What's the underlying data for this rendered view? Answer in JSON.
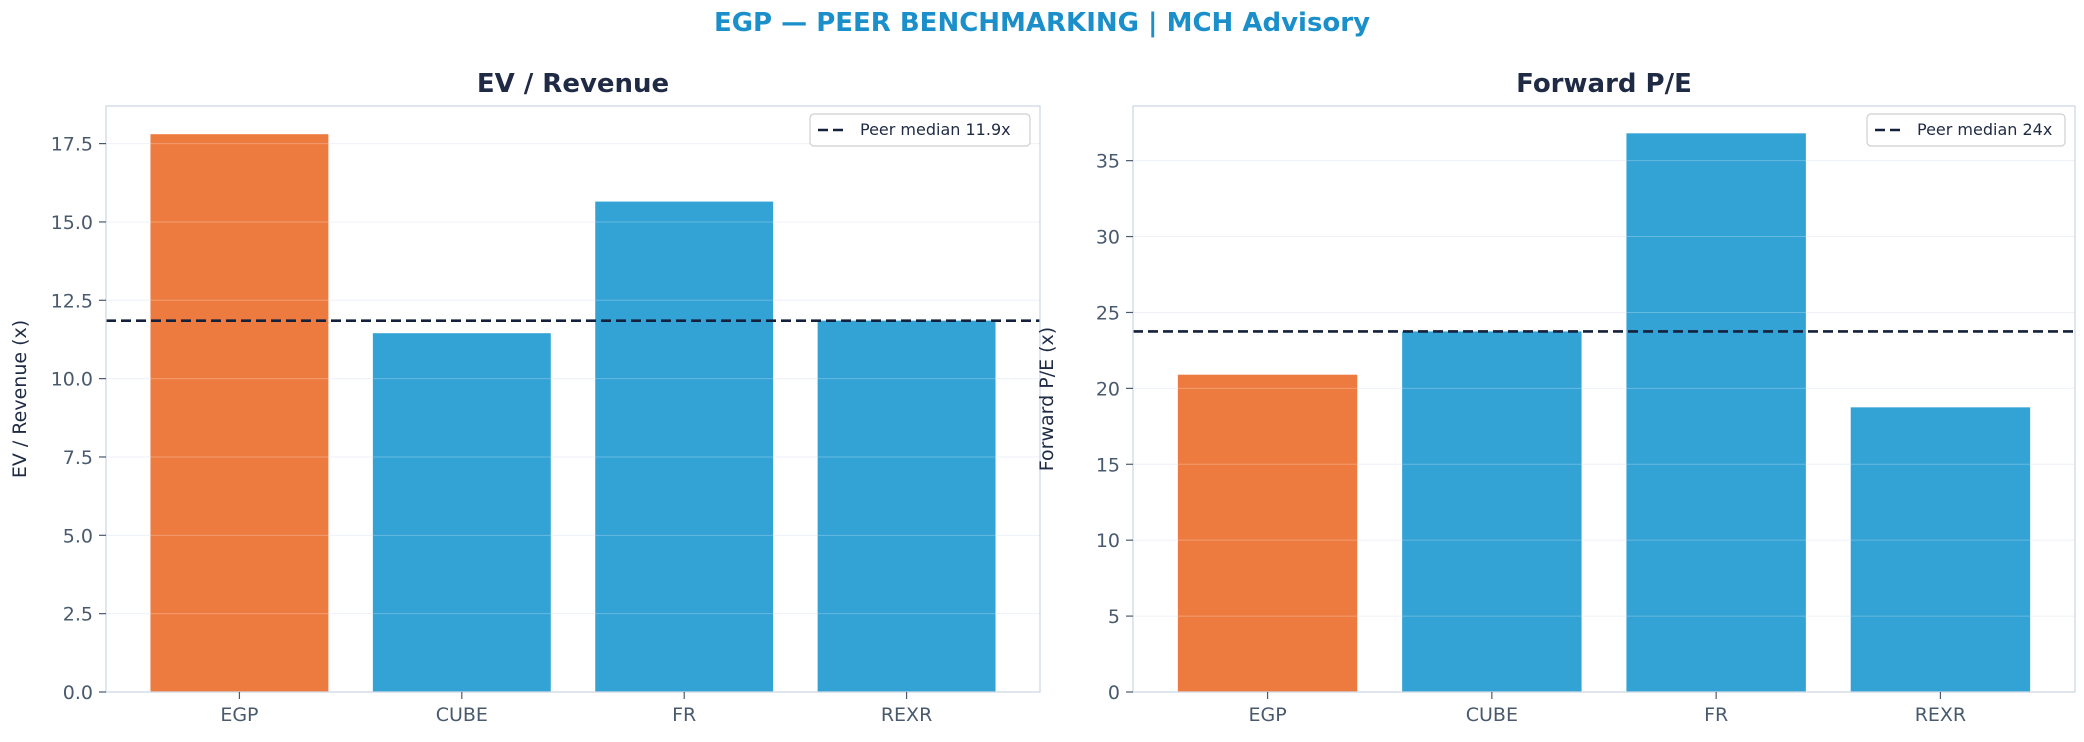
{
  "suptitle": "EGP — PEER BENCHMARKING | MCH Advisory",
  "colors": {
    "highlight": "#ED7B3F",
    "peer": "#33A2D4",
    "median_line": "#14213D",
    "title": "#1a8fca",
    "axis_text": "#4a5a6e",
    "axis_title": "#1f2a44",
    "panel_border": "#cfd8e3",
    "grid": "#e8eef4"
  },
  "chart_data": [
    {
      "type": "bar",
      "title": "EV / Revenue",
      "xlabel": "",
      "ylabel": "EV / Revenue (x)",
      "categories": [
        "EGP",
        "CUBE",
        "FR",
        "REXR"
      ],
      "values": [
        17.8,
        11.45,
        15.65,
        11.85
      ],
      "highlight_index": 0,
      "ylim": [
        0,
        18.7
      ],
      "yticks": [
        0,
        2.5,
        5,
        7.5,
        10,
        12.5,
        15,
        17.5
      ],
      "ytick_labels": [
        "0.0",
        "2.5",
        "5.0",
        "7.5",
        "10.0",
        "12.5",
        "15.0",
        "17.5"
      ],
      "median": 11.85,
      "legend_label": "Peer median 11.9x",
      "legend_position": "top-right",
      "grid": true
    },
    {
      "type": "bar",
      "title": "Forward P/E",
      "xlabel": "",
      "ylabel": "Forward P/E (x)",
      "categories": [
        "EGP",
        "CUBE",
        "FR",
        "REXR"
      ],
      "values": [
        20.9,
        23.75,
        36.8,
        18.75
      ],
      "highlight_index": 0,
      "ylim": [
        0,
        38.6
      ],
      "yticks": [
        0,
        5,
        10,
        15,
        20,
        25,
        30,
        35
      ],
      "ytick_labels": [
        "0",
        "5",
        "10",
        "15",
        "20",
        "25",
        "30",
        "35"
      ],
      "median": 23.75,
      "legend_label": "Peer median 24x",
      "legend_position": "top-right",
      "grid": true
    }
  ]
}
